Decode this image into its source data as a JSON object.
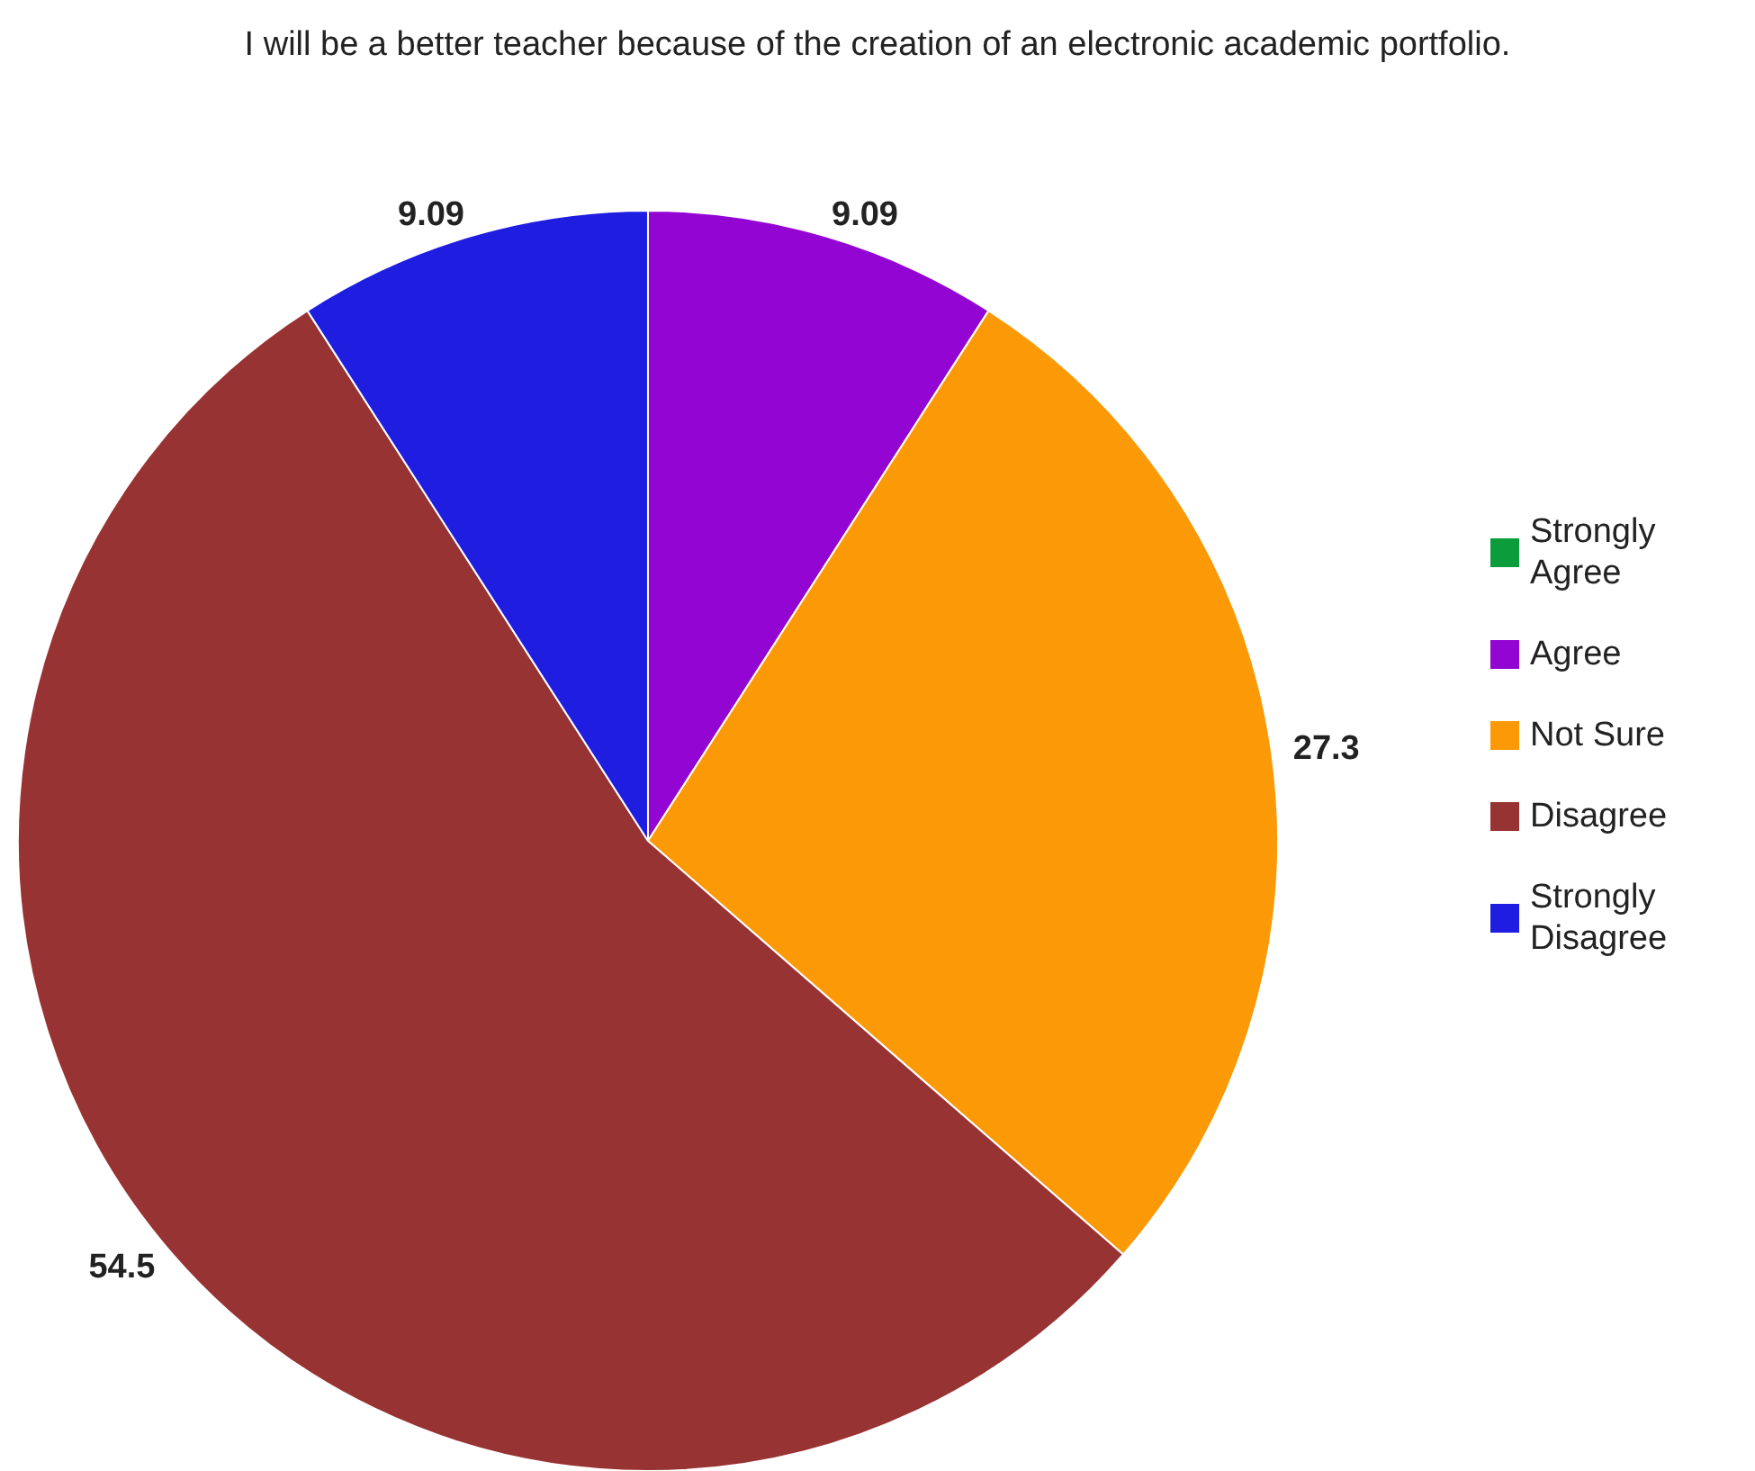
{
  "chart_data": {
    "type": "pie",
    "title": "I will be a better teacher because of the creation of an electronic academic portfolio.",
    "categories": [
      "Strongly Agree",
      "Agree",
      "Not Sure",
      "Disagree",
      "Strongly Disagree"
    ],
    "values": [
      0,
      9.09,
      27.3,
      54.5,
      9.09
    ],
    "colors": [
      "#0d9c3c",
      "#9305d2",
      "#fb9a06",
      "#983333",
      "#1f1de0"
    ],
    "value_labels": [
      null,
      "9.09",
      "27.3",
      "54.5",
      "9.09"
    ],
    "legend": "right"
  }
}
